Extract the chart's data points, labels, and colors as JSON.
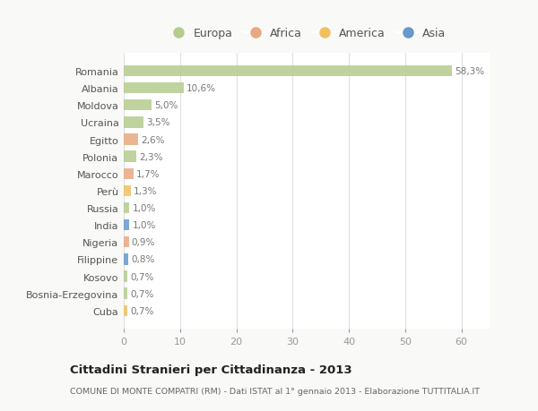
{
  "countries": [
    "Romania",
    "Albania",
    "Moldova",
    "Ucraina",
    "Egitto",
    "Polonia",
    "Marocco",
    "Perù",
    "Russia",
    "India",
    "Nigeria",
    "Filippine",
    "Kosovo",
    "Bosnia-Erzegovina",
    "Cuba"
  ],
  "values": [
    58.3,
    10.6,
    5.0,
    3.5,
    2.6,
    2.3,
    1.7,
    1.3,
    1.0,
    1.0,
    0.9,
    0.8,
    0.7,
    0.7,
    0.7
  ],
  "labels": [
    "58,3%",
    "10,6%",
    "5,0%",
    "3,5%",
    "2,6%",
    "2,3%",
    "1,7%",
    "1,3%",
    "1,0%",
    "1,0%",
    "0,9%",
    "0,8%",
    "0,7%",
    "0,7%",
    "0,7%"
  ],
  "continents": [
    "Europa",
    "Europa",
    "Europa",
    "Europa",
    "Africa",
    "Europa",
    "Africa",
    "America",
    "Europa",
    "Asia",
    "Africa",
    "Asia",
    "Europa",
    "Europa",
    "America"
  ],
  "continent_colors": {
    "Europa": "#b5cc8e",
    "Africa": "#e8a882",
    "America": "#f0c060",
    "Asia": "#6699cc"
  },
  "legend_order": [
    "Europa",
    "Africa",
    "America",
    "Asia"
  ],
  "title": "Cittadini Stranieri per Cittadinanza - 2013",
  "subtitle": "COMUNE DI MONTE COMPATRI (RM) - Dati ISTAT al 1° gennaio 2013 - Elaborazione TUTTITALIA.IT",
  "xlim": [
    0,
    65
  ],
  "xticks": [
    0,
    10,
    20,
    30,
    40,
    50,
    60
  ],
  "bg_color": "#f9f9f7",
  "plot_bg_color": "#ffffff",
  "grid_color": "#e0e0e0",
  "label_color": "#777777",
  "bar_alpha": 0.85
}
